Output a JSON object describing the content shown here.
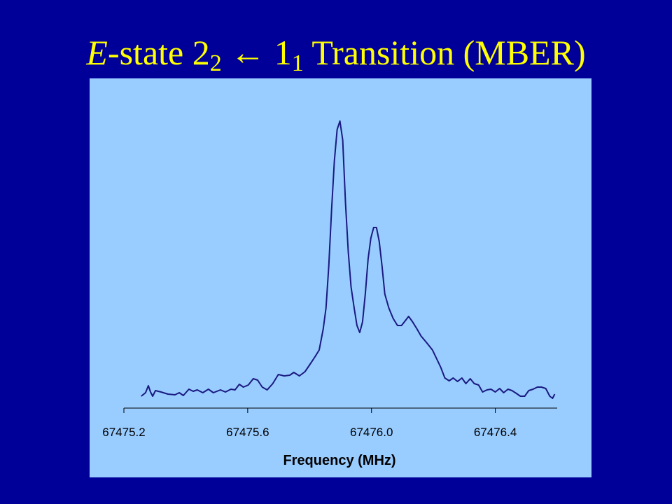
{
  "chart_data": {
    "type": "line",
    "title": [
      "E",
      "-state 2",
      "2",
      " ← 1",
      "1",
      " Transition (MBER)"
    ],
    "x_label": "Frequency (MHz)",
    "x": [
      67475.256,
      67475.27,
      67475.279,
      67475.286,
      67475.293,
      67475.302,
      67475.32,
      67475.342,
      67475.365,
      67475.379,
      67475.392,
      67475.41,
      67475.424,
      67475.437,
      67475.455,
      67475.473,
      67475.489,
      67475.512,
      67475.528,
      67475.546,
      67475.559,
      67475.573,
      67475.586,
      67475.602,
      67475.618,
      67475.632,
      67475.647,
      67475.663,
      67475.681,
      67475.699,
      67475.718,
      67475.736,
      67475.749,
      67475.767,
      67475.785,
      67475.799,
      67475.817,
      67475.831,
      67475.844,
      67475.853,
      67475.862,
      67475.871,
      67475.88,
      67475.889,
      67475.898,
      67475.907,
      67475.916,
      67475.925,
      67475.934,
      67475.944,
      67475.953,
      67475.962,
      67475.971,
      67475.98,
      67475.989,
      67475.998,
      67476.007,
      67476.016,
      67476.025,
      67476.034,
      67476.043,
      67476.056,
      67476.07,
      67476.084,
      67476.097,
      67476.106,
      67476.12,
      67476.133,
      67476.147,
      67476.16,
      67476.179,
      67476.197,
      67476.21,
      67476.224,
      67476.237,
      67476.251,
      67476.264,
      67476.278,
      67476.292,
      67476.305,
      67476.319,
      67476.332,
      67476.346,
      67476.359,
      67476.373,
      67476.386,
      67476.4,
      67476.414,
      67476.427,
      67476.441,
      67476.454,
      67476.468,
      67476.481,
      67476.495,
      67476.508,
      67476.522,
      67476.536,
      67476.549,
      67476.563,
      67476.576,
      67476.585,
      67476.592
    ],
    "values": [
      4.25,
      5.5,
      8,
      5.75,
      4.25,
      6.25,
      5.75,
      5,
      4.75,
      5.5,
      4.5,
      6.75,
      6,
      6.5,
      5.5,
      6.75,
      5.5,
      6.5,
      5.75,
      6.75,
      6.5,
      8.5,
      7.5,
      8.25,
      10.5,
      10,
      7.5,
      6.5,
      8.75,
      12,
      11.5,
      11.75,
      12.75,
      11.5,
      13,
      15.25,
      18.25,
      20.75,
      28.25,
      35.75,
      50.75,
      70.75,
      88.25,
      99.5,
      102.5,
      95.75,
      73.25,
      55.75,
      43.25,
      35.75,
      29.5,
      27,
      30.75,
      40.75,
      53.25,
      60.75,
      64.5,
      64.5,
      59.5,
      50.75,
      40.75,
      35.75,
      32,
      29.5,
      29.5,
      30.75,
      32.75,
      30.75,
      28.25,
      25.75,
      23.25,
      20.75,
      17.75,
      14.5,
      10.75,
      9.75,
      10.75,
      9.5,
      10.75,
      8.75,
      10.5,
      8.75,
      8.25,
      5.75,
      6.5,
      6.75,
      5.75,
      7,
      5.5,
      6.75,
      6.25,
      5.25,
      4.25,
      4.25,
      6.25,
      6.75,
      7.5,
      7.5,
      7,
      4.25,
      3.5,
      5
    ],
    "color": "#1a1a80",
    "xlim": [
      67475.2,
      67476.6
    ],
    "ylim": [
      0,
      105
    ],
    "xticks": [
      67475.2,
      67475.6,
      {
        "value": 67476,
        "label": "67476.0"
      },
      67476.4
    ]
  }
}
